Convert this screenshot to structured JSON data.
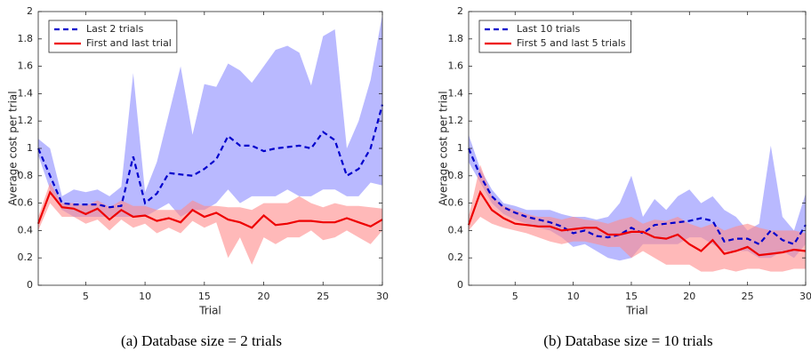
{
  "chart_data": [
    {
      "type": "line",
      "caption": "(a) Database size = 2 trials",
      "xlabel": "Trial",
      "ylabel": "Average cost per trial",
      "x": [
        1,
        2,
        3,
        4,
        5,
        6,
        7,
        8,
        9,
        10,
        11,
        12,
        13,
        14,
        15,
        16,
        17,
        18,
        19,
        20,
        21,
        22,
        23,
        24,
        25,
        26,
        27,
        28,
        29,
        30
      ],
      "xlim": [
        1,
        30
      ],
      "xticks": [
        5,
        10,
        15,
        20,
        25,
        30
      ],
      "ylim": [
        0,
        2
      ],
      "yticks": [
        0,
        0.2,
        0.4,
        0.6,
        0.8,
        1,
        1.2,
        1.4,
        1.6,
        1.8,
        2
      ],
      "legend_loc": "upper left",
      "series": [
        {
          "name": "Last 2 trials",
          "color": "#0000cc",
          "band_color": "#8a8aff",
          "linestyle": "dashed",
          "values": [
            1.0,
            0.8,
            0.6,
            0.59,
            0.59,
            0.59,
            0.57,
            0.58,
            0.94,
            0.6,
            0.67,
            0.82,
            0.81,
            0.8,
            0.85,
            0.92,
            1.09,
            1.02,
            1.02,
            0.98,
            1.0,
            1.01,
            1.02,
            1.0,
            1.12,
            1.06,
            0.8,
            0.85,
            1.0,
            1.32
          ],
          "upper": [
            1.07,
            1.0,
            0.65,
            0.7,
            0.68,
            0.7,
            0.65,
            0.72,
            1.55,
            0.68,
            0.9,
            1.25,
            1.6,
            1.1,
            1.47,
            1.45,
            1.62,
            1.57,
            1.48,
            1.6,
            1.72,
            1.75,
            1.7,
            1.46,
            1.82,
            1.87,
            1.0,
            1.2,
            1.5,
            1.98
          ],
          "lower": [
            0.95,
            0.7,
            0.55,
            0.5,
            0.5,
            0.5,
            0.5,
            0.5,
            0.5,
            0.5,
            0.55,
            0.6,
            0.5,
            0.55,
            0.55,
            0.6,
            0.7,
            0.6,
            0.65,
            0.65,
            0.65,
            0.7,
            0.65,
            0.65,
            0.7,
            0.7,
            0.65,
            0.65,
            0.75,
            0.73
          ]
        },
        {
          "name": "First and last trial",
          "color": "#ee0000",
          "band_color": "#ff8a8a",
          "linestyle": "solid",
          "values": [
            0.45,
            0.68,
            0.57,
            0.56,
            0.52,
            0.56,
            0.48,
            0.55,
            0.5,
            0.51,
            0.47,
            0.49,
            0.46,
            0.55,
            0.5,
            0.53,
            0.48,
            0.46,
            0.42,
            0.51,
            0.44,
            0.45,
            0.47,
            0.47,
            0.46,
            0.46,
            0.49,
            0.46,
            0.43,
            0.48
          ],
          "upper": [
            0.5,
            0.75,
            0.6,
            0.6,
            0.58,
            0.62,
            0.57,
            0.62,
            0.58,
            0.58,
            0.55,
            0.55,
            0.55,
            0.62,
            0.58,
            0.58,
            0.57,
            0.57,
            0.55,
            0.6,
            0.6,
            0.6,
            0.65,
            0.6,
            0.57,
            0.6,
            0.58,
            0.58,
            0.57,
            0.56
          ],
          "lower": [
            0.4,
            0.6,
            0.5,
            0.5,
            0.45,
            0.48,
            0.4,
            0.48,
            0.42,
            0.45,
            0.38,
            0.42,
            0.38,
            0.47,
            0.42,
            0.46,
            0.2,
            0.35,
            0.15,
            0.35,
            0.3,
            0.35,
            0.35,
            0.4,
            0.33,
            0.35,
            0.4,
            0.35,
            0.3,
            0.4
          ]
        }
      ]
    },
    {
      "type": "line",
      "caption": "(b) Database size = 10 trials",
      "xlabel": "Trial",
      "ylabel": "Average cost per trial",
      "x": [
        1,
        2,
        3,
        4,
        5,
        6,
        7,
        8,
        9,
        10,
        11,
        12,
        13,
        14,
        15,
        16,
        17,
        18,
        19,
        20,
        21,
        22,
        23,
        24,
        25,
        26,
        27,
        28,
        29,
        30
      ],
      "xlim": [
        1,
        30
      ],
      "xticks": [
        5,
        10,
        15,
        20,
        25,
        30
      ],
      "ylim": [
        0,
        2
      ],
      "yticks": [
        0,
        0.2,
        0.4,
        0.6,
        0.8,
        1,
        1.2,
        1.4,
        1.6,
        1.8,
        2
      ],
      "legend_loc": "upper left",
      "series": [
        {
          "name": "Last 10 trials",
          "color": "#0000cc",
          "band_color": "#8a8aff",
          "linestyle": "dashed",
          "values": [
            1.0,
            0.8,
            0.65,
            0.57,
            0.53,
            0.5,
            0.48,
            0.46,
            0.43,
            0.38,
            0.4,
            0.36,
            0.35,
            0.37,
            0.42,
            0.38,
            0.44,
            0.45,
            0.46,
            0.47,
            0.49,
            0.47,
            0.32,
            0.34,
            0.34,
            0.3,
            0.4,
            0.33,
            0.3,
            0.44
          ],
          "upper": [
            1.1,
            0.85,
            0.7,
            0.6,
            0.58,
            0.55,
            0.55,
            0.55,
            0.52,
            0.5,
            0.5,
            0.48,
            0.5,
            0.6,
            0.8,
            0.5,
            0.63,
            0.55,
            0.65,
            0.7,
            0.6,
            0.65,
            0.55,
            0.5,
            0.4,
            0.45,
            1.02,
            0.5,
            0.4,
            0.67
          ],
          "lower": [
            0.9,
            0.75,
            0.6,
            0.52,
            0.48,
            0.45,
            0.42,
            0.4,
            0.35,
            0.28,
            0.3,
            0.25,
            0.2,
            0.18,
            0.2,
            0.3,
            0.3,
            0.3,
            0.3,
            0.35,
            0.35,
            0.3,
            0.25,
            0.25,
            0.25,
            0.2,
            0.2,
            0.25,
            0.2,
            0.3
          ]
        },
        {
          "name": "First 5 and last 5 trials",
          "color": "#ee0000",
          "band_color": "#ff8a8a",
          "linestyle": "solid",
          "values": [
            0.44,
            0.68,
            0.55,
            0.49,
            0.45,
            0.44,
            0.43,
            0.43,
            0.4,
            0.41,
            0.42,
            0.42,
            0.37,
            0.37,
            0.39,
            0.39,
            0.35,
            0.34,
            0.37,
            0.3,
            0.25,
            0.33,
            0.23,
            0.25,
            0.28,
            0.22,
            0.23,
            0.24,
            0.26,
            0.25
          ],
          "upper": [
            0.5,
            0.88,
            0.65,
            0.58,
            0.55,
            0.52,
            0.5,
            0.5,
            0.48,
            0.5,
            0.48,
            0.47,
            0.45,
            0.48,
            0.5,
            0.45,
            0.48,
            0.47,
            0.5,
            0.45,
            0.42,
            0.45,
            0.4,
            0.43,
            0.45,
            0.42,
            0.4,
            0.4,
            0.4,
            0.38
          ],
          "lower": [
            0.4,
            0.5,
            0.45,
            0.42,
            0.4,
            0.38,
            0.35,
            0.32,
            0.3,
            0.32,
            0.32,
            0.3,
            0.28,
            0.28,
            0.2,
            0.25,
            0.2,
            0.15,
            0.15,
            0.15,
            0.1,
            0.1,
            0.12,
            0.1,
            0.12,
            0.12,
            0.1,
            0.1,
            0.12,
            0.12
          ]
        }
      ]
    }
  ]
}
